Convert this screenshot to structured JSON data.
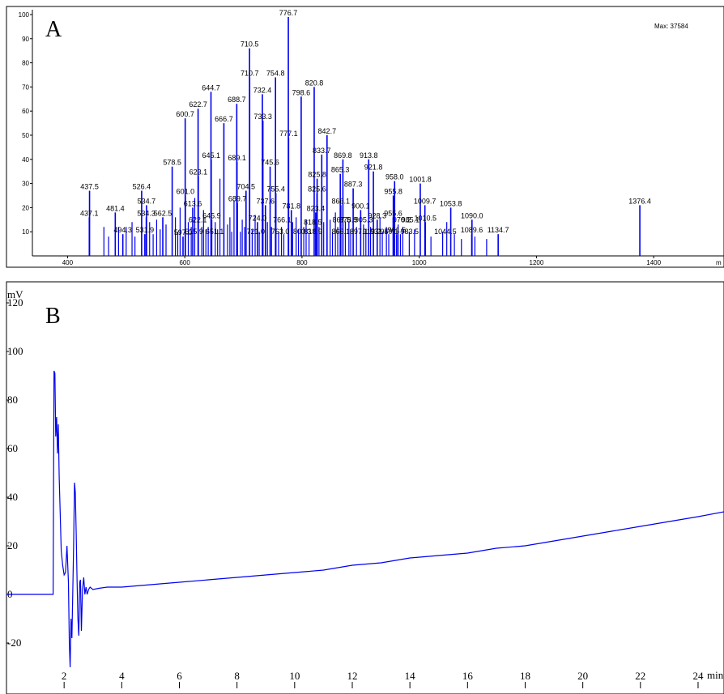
{
  "chart_data": [
    {
      "type": "bar",
      "panel_label": "A",
      "max_text": "Max: 37584",
      "xlim": [
        340,
        1520
      ],
      "ylim": [
        0,
        102
      ],
      "x_ticks": [
        400,
        600,
        800,
        1000,
        1200,
        1400
      ],
      "x_unit_label": "m",
      "y_ticks": [
        10,
        20,
        30,
        40,
        50,
        60,
        70,
        80,
        90,
        100
      ],
      "peaks": [
        {
          "x": 437.5,
          "y": 27,
          "label": "437.5"
        },
        {
          "x": 437.1,
          "y": 16,
          "label": "437.1"
        },
        {
          "x": 481.4,
          "y": 18,
          "label": "481.4"
        },
        {
          "x": 494.3,
          "y": 9,
          "label": "494.3"
        },
        {
          "x": 526.4,
          "y": 27,
          "label": "526.4"
        },
        {
          "x": 534.7,
          "y": 21,
          "label": "534.7"
        },
        {
          "x": 534.3,
          "y": 16,
          "label": "534.3"
        },
        {
          "x": 531.9,
          "y": 9,
          "label": "531.9"
        },
        {
          "x": 562.5,
          "y": 16,
          "label": "562.5"
        },
        {
          "x": 578.5,
          "y": 37,
          "label": "578.5"
        },
        {
          "x": 597.0,
          "y": 8,
          "label": "597.0"
        },
        {
          "x": 600.7,
          "y": 57,
          "label": "600.7"
        },
        {
          "x": 601.0,
          "y": 25,
          "label": "601.0"
        },
        {
          "x": 613.6,
          "y": 20,
          "label": "613.6"
        },
        {
          "x": 622.7,
          "y": 61,
          "label": "622.7"
        },
        {
          "x": 623.1,
          "y": 33,
          "label": "623.1"
        },
        {
          "x": 644.7,
          "y": 68,
          "label": "644.7"
        },
        {
          "x": 645.1,
          "y": 40,
          "label": "645.1"
        },
        {
          "x": 645.9,
          "y": 15,
          "label": "645.9"
        },
        {
          "x": 666.7,
          "y": 55,
          "label": "666.7"
        },
        {
          "x": 688.7,
          "y": 63,
          "label": "688.7"
        },
        {
          "x": 689.1,
          "y": 39,
          "label": "689.1"
        },
        {
          "x": 689.7,
          "y": 22,
          "label": "689.7"
        },
        {
          "x": 704.5,
          "y": 27,
          "label": "704.5"
        },
        {
          "x": 710.5,
          "y": 86,
          "label": "710.5"
        },
        {
          "x": 710.7,
          "y": 74,
          "label": "710.7"
        },
        {
          "x": 724.0,
          "y": 14,
          "label": "724.0"
        },
        {
          "x": 732.4,
          "y": 67,
          "label": "732.4"
        },
        {
          "x": 733.3,
          "y": 56,
          "label": "733.3"
        },
        {
          "x": 737.6,
          "y": 21,
          "label": "737.6"
        },
        {
          "x": 745.6,
          "y": 37,
          "label": "745.6"
        },
        {
          "x": 754.8,
          "y": 74,
          "label": "754.8"
        },
        {
          "x": 755.4,
          "y": 26,
          "label": "755.4"
        },
        {
          "x": 776.7,
          "y": 99,
          "label": "776.7"
        },
        {
          "x": 777.1,
          "y": 49,
          "label": "777.1"
        },
        {
          "x": 781.8,
          "y": 19,
          "label": "781.8"
        },
        {
          "x": 798.6,
          "y": 66,
          "label": "798.6"
        },
        {
          "x": 820.8,
          "y": 70,
          "label": "820.8"
        },
        {
          "x": 825.8,
          "y": 32,
          "label": "825.8"
        },
        {
          "x": 825.6,
          "y": 26,
          "label": "825.6"
        },
        {
          "x": 823.4,
          "y": 18,
          "label": "823.4"
        },
        {
          "x": 833.7,
          "y": 42,
          "label": "833.7"
        },
        {
          "x": 842.7,
          "y": 50,
          "label": "842.7"
        },
        {
          "x": 865.3,
          "y": 34,
          "label": "865.3"
        },
        {
          "x": 866.1,
          "y": 21,
          "label": "866.1"
        },
        {
          "x": 869.8,
          "y": 40,
          "label": "869.8"
        },
        {
          "x": 887.3,
          "y": 28,
          "label": "887.3"
        },
        {
          "x": 900.1,
          "y": 19,
          "label": "900.1"
        },
        {
          "x": 913.8,
          "y": 40,
          "label": "913.8"
        },
        {
          "x": 921.8,
          "y": 35,
          "label": "921.8"
        },
        {
          "x": 928.3,
          "y": 15,
          "label": "928.3"
        },
        {
          "x": 958.0,
          "y": 31,
          "label": "958.0"
        },
        {
          "x": 955.8,
          "y": 25,
          "label": "955.8"
        },
        {
          "x": 955.6,
          "y": 16,
          "label": "955.6"
        },
        {
          "x": 961.6,
          "y": 9,
          "label": "961.6"
        },
        {
          "x": 1001.8,
          "y": 30,
          "label": "1001.8"
        },
        {
          "x": 1009.7,
          "y": 21,
          "label": "1009.7"
        },
        {
          "x": 1010.5,
          "y": 14,
          "label": "1010.5"
        },
        {
          "x": 1053.8,
          "y": 20,
          "label": "1053.8"
        },
        {
          "x": 1090.0,
          "y": 15,
          "label": "1090.0"
        },
        {
          "x": 1089.6,
          "y": 9,
          "label": "1089.6"
        },
        {
          "x": 1134.7,
          "y": 9,
          "label": "1134.7"
        },
        {
          "x": 1376.4,
          "y": 21,
          "label": "1376.4"
        }
      ],
      "other_labels": [
        "818.5",
        "818.9",
        "800.3",
        "763.0",
        "766.1",
        "721.0",
        "615.9",
        "651.1",
        "622.1",
        "878.9",
        "897.1",
        "905.3",
        "866.1",
        "867.5",
        "919.2",
        "931.5",
        "949.1",
        "970.2",
        "983.5",
        "985.1",
        "1044.5"
      ],
      "minor_peaks": [
        [
          462,
          12
        ],
        [
          470,
          8
        ],
        [
          487,
          12
        ],
        [
          500,
          12
        ],
        [
          510,
          14
        ],
        [
          515,
          8
        ],
        [
          540,
          14
        ],
        [
          546,
          9
        ],
        [
          552,
          15
        ],
        [
          558,
          11
        ],
        [
          568,
          13
        ],
        [
          584,
          16
        ],
        [
          588,
          10
        ],
        [
          592,
          20
        ],
        [
          606,
          14
        ],
        [
          611,
          12
        ],
        [
          617,
          24
        ],
        [
          629,
          12
        ],
        [
          632,
          19
        ],
        [
          636,
          11
        ],
        [
          640,
          12
        ],
        [
          652,
          14
        ],
        [
          656,
          11
        ],
        [
          660,
          32
        ],
        [
          673,
          13
        ],
        [
          677,
          16
        ],
        [
          680,
          10
        ],
        [
          684,
          23
        ],
        [
          695,
          10
        ],
        [
          698,
          15
        ],
        [
          702,
          12
        ],
        [
          715,
          11
        ],
        [
          720,
          17
        ],
        [
          727,
          10
        ],
        [
          741,
          14
        ],
        [
          748,
          12
        ],
        [
          760,
          10
        ],
        [
          765,
          12
        ],
        [
          769,
          9
        ],
        [
          784,
          14
        ],
        [
          790,
          16
        ],
        [
          794,
          11
        ],
        [
          803,
          12
        ],
        [
          807,
          15
        ],
        [
          812,
          9
        ],
        [
          829,
          12
        ],
        [
          837,
          14
        ],
        [
          848,
          15
        ],
        [
          852,
          10
        ],
        [
          857,
          18
        ],
        [
          861,
          12
        ],
        [
          874,
          14
        ],
        [
          880,
          14
        ],
        [
          883,
          11
        ],
        [
          893,
          12
        ],
        [
          905,
          13
        ],
        [
          909,
          11
        ],
        [
          917,
          12
        ],
        [
          933,
          16
        ],
        [
          937,
          10
        ],
        [
          944,
          12
        ],
        [
          948,
          9
        ],
        [
          964,
          13
        ],
        [
          968,
          9
        ],
        [
          972,
          12
        ],
        [
          983,
          10
        ],
        [
          992,
          11
        ],
        [
          1020,
          8
        ],
        [
          1040,
          10
        ],
        [
          1047,
          14
        ],
        [
          1060,
          9
        ],
        [
          1072,
          7
        ],
        [
          1095,
          8
        ],
        [
          1115,
          7
        ]
      ]
    },
    {
      "type": "line",
      "panel_label": "B",
      "ylabel": "mV",
      "xlabel": "min",
      "xlim": [
        0,
        24.9
      ],
      "ylim": [
        -32,
        128
      ],
      "x_ticks": [
        2,
        4,
        6,
        8,
        10,
        12,
        14,
        16,
        18,
        20,
        22,
        24
      ],
      "y_ticks": [
        -20,
        0,
        20,
        40,
        60,
        80,
        100,
        120
      ],
      "series": [
        {
          "color": "#0000ee",
          "x": [
            0,
            1.5,
            1.62,
            1.65,
            1.68,
            1.71,
            1.74,
            1.77,
            1.8,
            1.83,
            1.86,
            1.9,
            1.95,
            2.0,
            2.05,
            2.1,
            2.15,
            2.18,
            2.21,
            2.24,
            2.27,
            2.3,
            2.33,
            2.36,
            2.39,
            2.42,
            2.45,
            2.48,
            2.51,
            2.54,
            2.57,
            2.6,
            2.64,
            2.68,
            2.72,
            2.76,
            2.8,
            2.85,
            2.9,
            3.0,
            3.2,
            3.5,
            4.0,
            5.0,
            6.0,
            7.0,
            8.0,
            9.0,
            10.0,
            11.0,
            12.0,
            13.0,
            14.0,
            15.0,
            16.0,
            17.0,
            18.0,
            19.0,
            20.0,
            21.0,
            22.0,
            23.0,
            24.0,
            24.9
          ],
          "y": [
            0,
            0,
            0,
            92,
            91,
            65,
            73,
            58,
            70,
            48,
            35,
            18,
            12,
            8,
            9,
            20,
            5,
            -20,
            -30,
            -10,
            -18,
            0,
            20,
            46,
            42,
            25,
            5,
            -10,
            -17,
            5,
            6,
            -15,
            2,
            7,
            0,
            3,
            0,
            2,
            3,
            2,
            2.5,
            3,
            3,
            4,
            5,
            6,
            7,
            8,
            9,
            10,
            12,
            13,
            15,
            16,
            17,
            19,
            20,
            22,
            24,
            26,
            28,
            30,
            32,
            34
          ]
        }
      ]
    }
  ]
}
